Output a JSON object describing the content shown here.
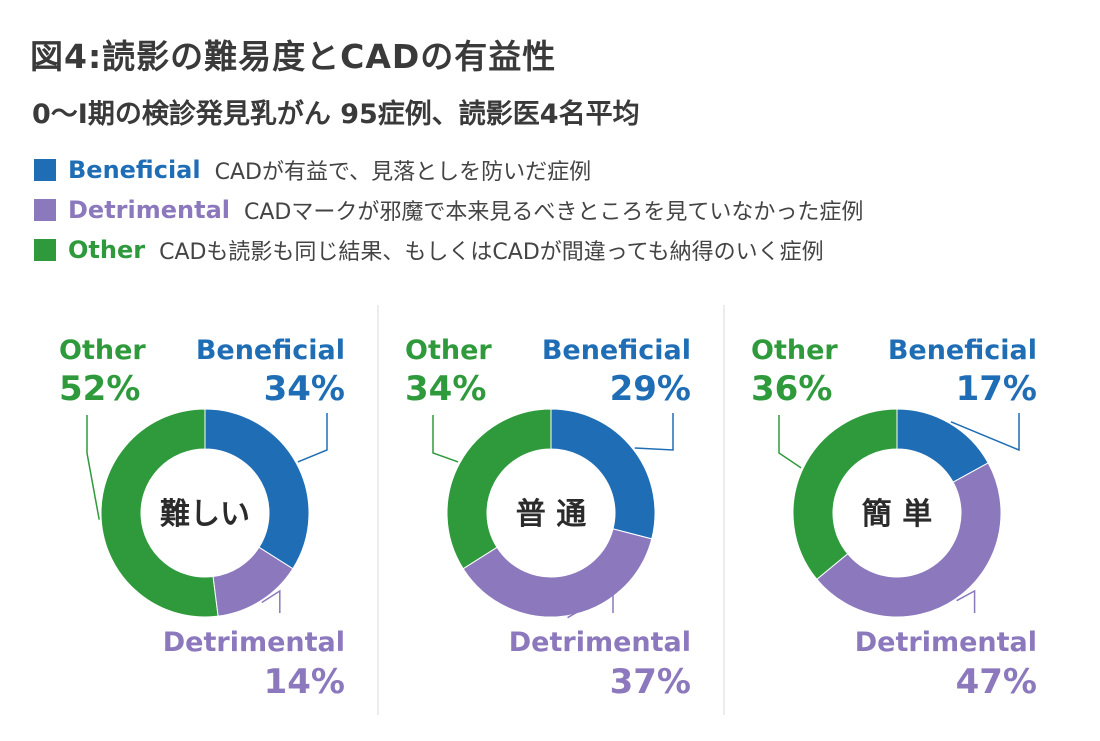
{
  "title": "図4:読影の難易度とCADの有益性",
  "subtitle": "0〜Ⅰ期の検診発見乳がん 95症例、読影医4名平均",
  "colors": {
    "beneficial": "#1f6eb5",
    "detrimental": "#8c78bd",
    "other": "#2f9a3c",
    "divider": "#ececec"
  },
  "legend": [
    {
      "name": "Beneficial",
      "desc": "CADが有益で、見落としを防いだ症例",
      "color": "#1f6eb5"
    },
    {
      "name": "Detrimental",
      "desc": "CADマークが邪魔で本来見るべきところを見ていなかった症例",
      "color": "#8c78bd"
    },
    {
      "name": "Other",
      "desc": "CADも読影も同じ結果、もしくはCADが間違っても納得のいく症例",
      "color": "#2f9a3c"
    }
  ],
  "chart_data": [
    {
      "type": "pie",
      "center_label": "難しい",
      "series": [
        {
          "name": "Beneficial",
          "value": 34,
          "label": "34%"
        },
        {
          "name": "Detrimental",
          "value": 14,
          "label": "14%"
        },
        {
          "name": "Other",
          "value": 52,
          "label": "52%"
        }
      ]
    },
    {
      "type": "pie",
      "center_label": "普 通",
      "series": [
        {
          "name": "Beneficial",
          "value": 29,
          "label": "29%"
        },
        {
          "name": "Detrimental",
          "value": 37,
          "label": "37%"
        },
        {
          "name": "Other",
          "value": 34,
          "label": "34%"
        }
      ]
    },
    {
      "type": "pie",
      "center_label": "簡 単",
      "series": [
        {
          "name": "Beneficial",
          "value": 17,
          "label": "17%"
        },
        {
          "name": "Detrimental",
          "value": 47,
          "label": "47%"
        },
        {
          "name": "Other",
          "value": 36,
          "label": "36%"
        }
      ]
    }
  ]
}
